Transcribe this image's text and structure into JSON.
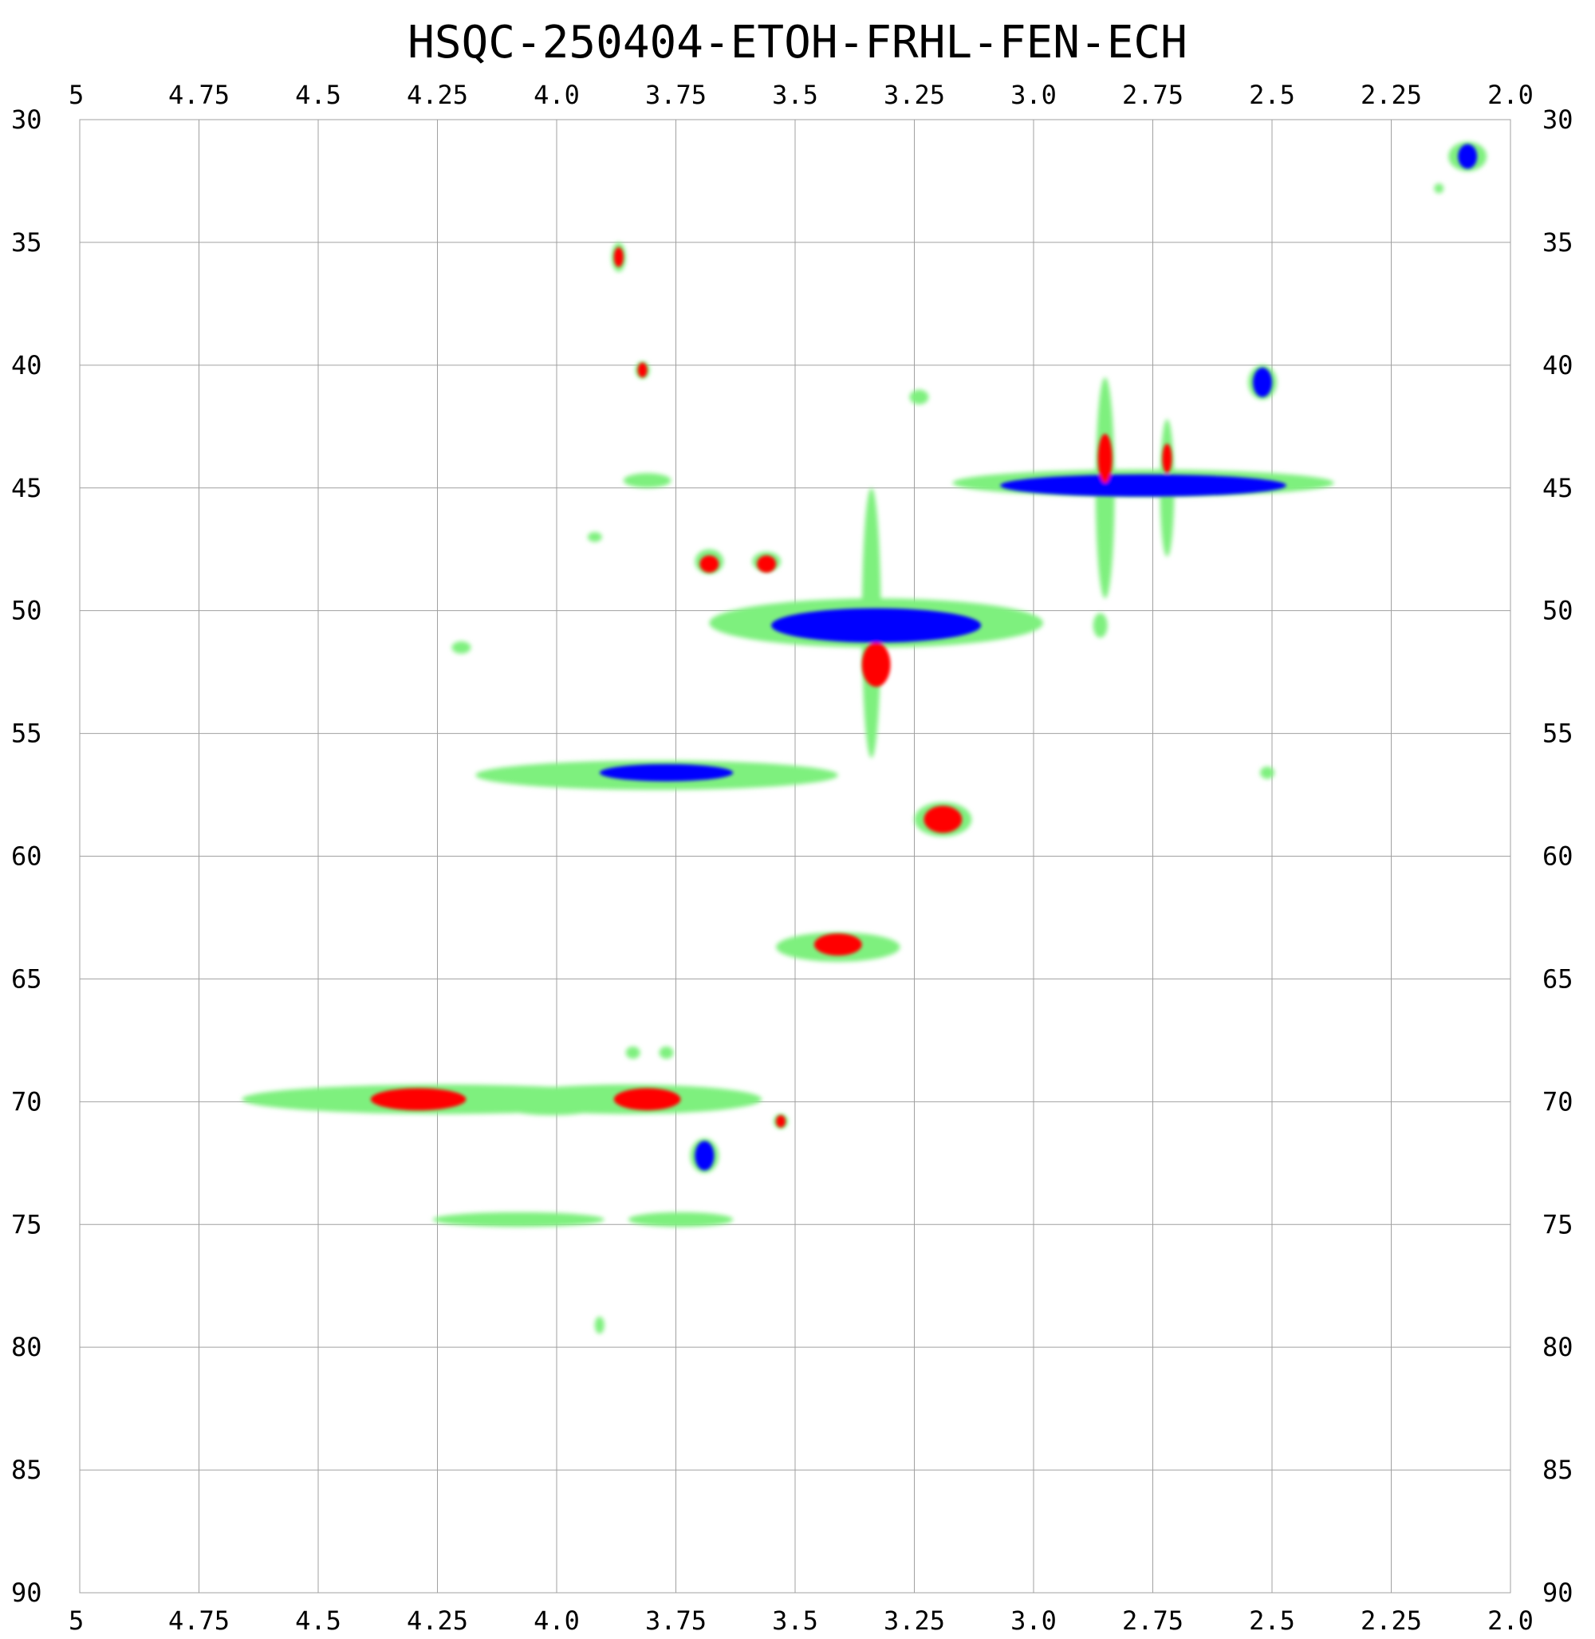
{
  "chart_data": {
    "type": "heatmap",
    "subtype": "2D NMR HSQC contour plot",
    "title": "HSQC-250404-ETOH-FRHL-FEN-ECH",
    "xlabel": "",
    "ylabel": "",
    "x_axis": {
      "range": [
        5,
        2
      ],
      "reversed": true,
      "ticks": [
        5,
        4.75,
        4.5,
        4.25,
        4.0,
        3.75,
        3.5,
        3.25,
        3.0,
        2.75,
        2.5,
        2.25,
        2.0
      ],
      "tick_labels": [
        "5",
        "4.75",
        "4.5",
        "4.25",
        "4.0",
        "3.75",
        "3.5",
        "3.25",
        "3.0",
        "2.75",
        "2.5",
        "2.25",
        "2.0"
      ],
      "shown_on": [
        "top",
        "bottom"
      ]
    },
    "y_axis": {
      "range": [
        30,
        90
      ],
      "reversed": true,
      "ticks": [
        30,
        35,
        40,
        45,
        50,
        55,
        60,
        65,
        70,
        75,
        80,
        85,
        90
      ],
      "tick_labels": [
        "30",
        "35",
        "40",
        "45",
        "50",
        "55",
        "60",
        "65",
        "70",
        "75",
        "80",
        "85",
        "90"
      ],
      "shown_on": [
        "left",
        "right"
      ]
    },
    "grid": true,
    "colors": {
      "positive": "#ff0000",
      "negative": "#0000ff",
      "outer": "#7ef07e",
      "grid": "#a0a0a0"
    },
    "contour_levels": [
      "outer",
      "negative",
      "positive"
    ],
    "peaks": [
      {
        "x": 3.33,
        "y": 50.6,
        "sign": "negative",
        "wx": 0.22,
        "hy": 0.7
      },
      {
        "x": 2.77,
        "y": 44.9,
        "sign": "negative",
        "wx": 0.3,
        "hy": 0.45
      },
      {
        "x": 2.52,
        "y": 40.7,
        "sign": "negative",
        "wx": 0.02,
        "hy": 0.6
      },
      {
        "x": 2.09,
        "y": 31.5,
        "sign": "negative",
        "wx": 0.02,
        "hy": 0.5
      },
      {
        "x": 3.77,
        "y": 56.6,
        "sign": "negative",
        "wx": 0.14,
        "hy": 0.35
      },
      {
        "x": 3.69,
        "y": 72.2,
        "sign": "negative",
        "wx": 0.02,
        "hy": 0.6
      },
      {
        "x": 4.29,
        "y": 69.9,
        "sign": "positive",
        "wx": 0.1,
        "hy": 0.45
      },
      {
        "x": 3.81,
        "y": 69.9,
        "sign": "positive",
        "wx": 0.07,
        "hy": 0.45
      },
      {
        "x": 3.33,
        "y": 52.2,
        "sign": "positive",
        "wx": 0.03,
        "hy": 0.9
      },
      {
        "x": 3.19,
        "y": 58.5,
        "sign": "positive",
        "wx": 0.04,
        "hy": 0.55
      },
      {
        "x": 3.41,
        "y": 63.6,
        "sign": "positive",
        "wx": 0.05,
        "hy": 0.45
      },
      {
        "x": 3.68,
        "y": 48.1,
        "sign": "positive",
        "wx": 0.02,
        "hy": 0.35
      },
      {
        "x": 3.56,
        "y": 48.1,
        "sign": "positive",
        "wx": 0.02,
        "hy": 0.35
      },
      {
        "x": 2.85,
        "y": 43.8,
        "sign": "positive",
        "wx": 0.015,
        "hy": 1.0
      },
      {
        "x": 2.72,
        "y": 43.8,
        "sign": "positive",
        "wx": 0.01,
        "hy": 0.6
      },
      {
        "x": 3.82,
        "y": 40.2,
        "sign": "positive",
        "wx": 0.01,
        "hy": 0.3
      },
      {
        "x": 3.87,
        "y": 35.6,
        "sign": "positive",
        "wx": 0.01,
        "hy": 0.4
      },
      {
        "x": 3.53,
        "y": 70.8,
        "sign": "positive",
        "wx": 0.01,
        "hy": 0.25
      }
    ],
    "outer_regions": [
      {
        "x": 3.33,
        "y": 50.5,
        "wx": 0.35,
        "hy": 1.0
      },
      {
        "x": 3.34,
        "y": 50.5,
        "wx": 0.02,
        "hy": 5.5
      },
      {
        "x": 2.77,
        "y": 44.8,
        "wx": 0.4,
        "hy": 0.55
      },
      {
        "x": 2.85,
        "y": 45.0,
        "wx": 0.02,
        "hy": 4.5
      },
      {
        "x": 2.72,
        "y": 45.0,
        "wx": 0.015,
        "hy": 2.8
      },
      {
        "x": 3.79,
        "y": 56.7,
        "wx": 0.38,
        "hy": 0.6
      },
      {
        "x": 4.24,
        "y": 69.9,
        "wx": 0.42,
        "hy": 0.6
      },
      {
        "x": 3.85,
        "y": 69.9,
        "wx": 0.28,
        "hy": 0.6
      },
      {
        "x": 4.01,
        "y": 70.2,
        "wx": 0.1,
        "hy": 0.35
      },
      {
        "x": 3.41,
        "y": 63.7,
        "wx": 0.13,
        "hy": 0.6
      },
      {
        "x": 3.19,
        "y": 58.5,
        "wx": 0.06,
        "hy": 0.7
      },
      {
        "x": 4.08,
        "y": 74.8,
        "wx": 0.18,
        "hy": 0.3
      },
      {
        "x": 3.74,
        "y": 74.8,
        "wx": 0.11,
        "hy": 0.3
      },
      {
        "x": 3.81,
        "y": 44.7,
        "wx": 0.05,
        "hy": 0.3
      },
      {
        "x": 3.68,
        "y": 48.0,
        "wx": 0.03,
        "hy": 0.5
      },
      {
        "x": 3.56,
        "y": 48.0,
        "wx": 0.03,
        "hy": 0.4
      },
      {
        "x": 3.69,
        "y": 72.2,
        "wx": 0.03,
        "hy": 0.7
      },
      {
        "x": 2.52,
        "y": 40.7,
        "wx": 0.03,
        "hy": 0.7
      },
      {
        "x": 2.09,
        "y": 31.5,
        "wx": 0.04,
        "hy": 0.6
      },
      {
        "x": 4.2,
        "y": 51.5,
        "wx": 0.02,
        "hy": 0.25
      },
      {
        "x": 3.92,
        "y": 47.0,
        "wx": 0.015,
        "hy": 0.2
      },
      {
        "x": 3.24,
        "y": 41.3,
        "wx": 0.02,
        "hy": 0.3
      },
      {
        "x": 2.51,
        "y": 56.6,
        "wx": 0.015,
        "hy": 0.25
      },
      {
        "x": 3.91,
        "y": 79.1,
        "wx": 0.01,
        "hy": 0.35
      },
      {
        "x": 3.84,
        "y": 68.0,
        "wx": 0.015,
        "hy": 0.25
      },
      {
        "x": 3.77,
        "y": 68.0,
        "wx": 0.015,
        "hy": 0.25
      },
      {
        "x": 3.87,
        "y": 35.6,
        "wx": 0.015,
        "hy": 0.6
      },
      {
        "x": 3.82,
        "y": 40.2,
        "wx": 0.015,
        "hy": 0.35
      },
      {
        "x": 2.86,
        "y": 50.6,
        "wx": 0.015,
        "hy": 0.5
      },
      {
        "x": 3.53,
        "y": 70.8,
        "wx": 0.015,
        "hy": 0.3
      },
      {
        "x": 2.15,
        "y": 32.8,
        "wx": 0.01,
        "hy": 0.2
      }
    ]
  }
}
